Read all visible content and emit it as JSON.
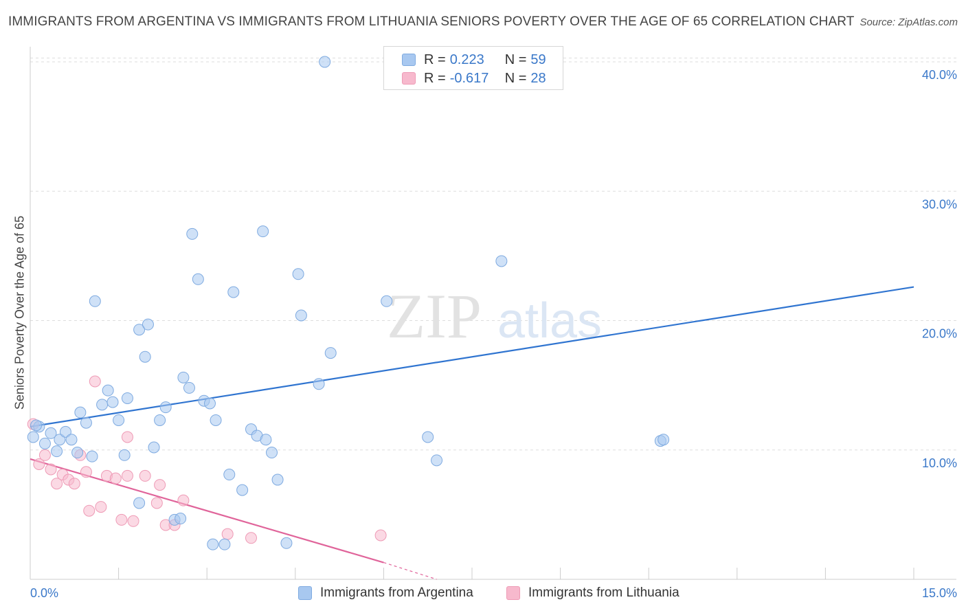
{
  "header": {
    "title": "IMMIGRANTS FROM ARGENTINA VS IMMIGRANTS FROM LITHUANIA SENIORS POVERTY OVER THE AGE OF 65 CORRELATION CHART",
    "source": "Source: ZipAtlas.com"
  },
  "watermark": {
    "zip": "ZIP",
    "atlas": "atlas"
  },
  "stats_legend": {
    "argentina": {
      "r_label": "R =",
      "r_value": "0.223",
      "n_label": "N =",
      "n_value": "59"
    },
    "lithuania": {
      "r_label": "R =",
      "r_value": "-0.617",
      "n_label": "N =",
      "n_value": "28"
    }
  },
  "colors": {
    "argentina_fill": "#a8c8f0",
    "argentina_stroke": "#7eaae0",
    "argentina_line": "#2f74d0",
    "lithuania_fill": "#f7b9cd",
    "lithuania_stroke": "#ee9ab5",
    "lithuania_line": "#e0649a",
    "tick_label": "#3a78c9",
    "grid": "#dddddd"
  },
  "chart_data": {
    "type": "scatter",
    "title": "IMMIGRANTS FROM ARGENTINA VS IMMIGRANTS FROM LITHUANIA SENIORS POVERTY OVER THE AGE OF 65 CORRELATION CHART",
    "xlabel": "",
    "ylabel": "Seniors Poverty Over the Age of 65",
    "xlim": [
      0,
      15
    ],
    "ylim": [
      0,
      40.8
    ],
    "x_tick_labels": [
      "0.0%",
      "15.0%"
    ],
    "y_ticks": [
      10,
      20,
      30,
      40
    ],
    "y_tick_labels": [
      "10.0%",
      "20.0%",
      "30.0%",
      "40.0%"
    ],
    "grid": true,
    "legend_position": "bottom",
    "series": [
      {
        "name": "Immigrants from Argentina",
        "points": [
          [
            0.05,
            11.0
          ],
          [
            0.15,
            11.8
          ],
          [
            0.25,
            10.5
          ],
          [
            0.35,
            11.3
          ],
          [
            0.45,
            9.9
          ],
          [
            0.5,
            10.8
          ],
          [
            0.6,
            11.4
          ],
          [
            0.7,
            10.8
          ],
          [
            0.8,
            9.8
          ],
          [
            0.85,
            12.9
          ],
          [
            0.95,
            12.1
          ],
          [
            1.05,
            9.5
          ],
          [
            1.1,
            21.5
          ],
          [
            1.22,
            13.5
          ],
          [
            1.32,
            14.6
          ],
          [
            1.4,
            13.7
          ],
          [
            1.5,
            12.3
          ],
          [
            1.6,
            9.6
          ],
          [
            1.65,
            14.0
          ],
          [
            1.85,
            5.9
          ],
          [
            1.85,
            19.3
          ],
          [
            1.95,
            17.2
          ],
          [
            2.0,
            19.7
          ],
          [
            2.1,
            10.2
          ],
          [
            2.2,
            12.3
          ],
          [
            2.3,
            13.3
          ],
          [
            2.45,
            4.6
          ],
          [
            2.55,
            4.7
          ],
          [
            2.6,
            15.6
          ],
          [
            2.7,
            14.8
          ],
          [
            2.75,
            26.7
          ],
          [
            2.85,
            23.2
          ],
          [
            2.95,
            13.8
          ],
          [
            3.05,
            13.6
          ],
          [
            3.1,
            2.7
          ],
          [
            3.15,
            12.3
          ],
          [
            3.3,
            2.7
          ],
          [
            3.38,
            8.1
          ],
          [
            3.45,
            22.2
          ],
          [
            3.6,
            6.9
          ],
          [
            3.75,
            11.6
          ],
          [
            3.85,
            11.1
          ],
          [
            3.95,
            26.9
          ],
          [
            4.0,
            10.8
          ],
          [
            4.1,
            9.8
          ],
          [
            4.2,
            7.7
          ],
          [
            4.35,
            2.8
          ],
          [
            4.55,
            23.6
          ],
          [
            4.6,
            20.4
          ],
          [
            4.9,
            15.1
          ],
          [
            5.0,
            40.0
          ],
          [
            5.1,
            17.5
          ],
          [
            6.05,
            21.5
          ],
          [
            6.75,
            11.0
          ],
          [
            6.9,
            9.2
          ],
          [
            8.0,
            24.6
          ],
          [
            10.7,
            10.7
          ],
          [
            10.75,
            10.8
          ],
          [
            0.1,
            11.9
          ]
        ]
      },
      {
        "name": "Immigrants from Lithuania",
        "points": [
          [
            0.05,
            12.0
          ],
          [
            0.15,
            8.9
          ],
          [
            0.25,
            9.6
          ],
          [
            0.35,
            8.5
          ],
          [
            0.45,
            7.4
          ],
          [
            0.55,
            8.1
          ],
          [
            0.65,
            7.7
          ],
          [
            0.75,
            7.4
          ],
          [
            0.85,
            9.6
          ],
          [
            0.95,
            8.3
          ],
          [
            1.0,
            5.3
          ],
          [
            1.1,
            15.3
          ],
          [
            1.2,
            5.6
          ],
          [
            1.3,
            8.0
          ],
          [
            1.45,
            7.8
          ],
          [
            1.55,
            4.6
          ],
          [
            1.65,
            11.0
          ],
          [
            1.65,
            8.0
          ],
          [
            1.75,
            4.5
          ],
          [
            1.95,
            8.0
          ],
          [
            2.15,
            5.9
          ],
          [
            2.2,
            7.3
          ],
          [
            2.3,
            4.2
          ],
          [
            2.45,
            4.2
          ],
          [
            2.6,
            6.1
          ],
          [
            3.35,
            3.5
          ],
          [
            3.75,
            3.2
          ],
          [
            5.95,
            3.4
          ]
        ]
      }
    ],
    "trend_lines": [
      {
        "series": "Immigrants from Argentina",
        "x": [
          0,
          15
        ],
        "y": [
          11.8,
          22.6
        ]
      },
      {
        "series": "Immigrants from Lithuania",
        "x": [
          0,
          6.0
        ],
        "y": [
          9.3,
          1.3
        ],
        "dashed_to": [
          6.9,
          0.0
        ]
      }
    ]
  }
}
